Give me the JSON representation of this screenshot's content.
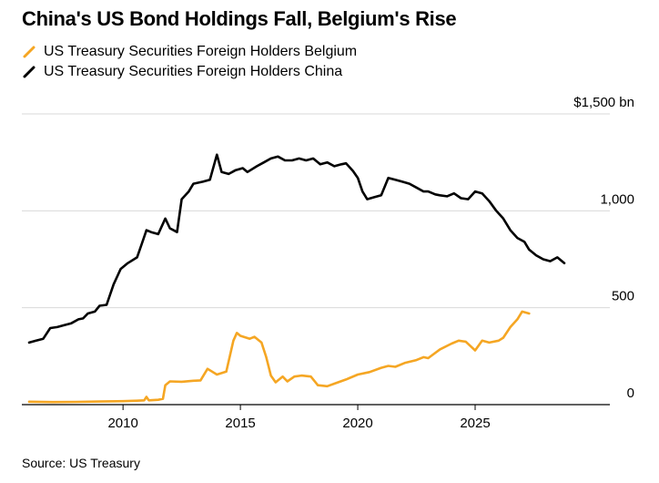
{
  "title": "China's US Bond Holdings Fall, Belgium's Rise",
  "source": "Source: US Treasury",
  "colors": {
    "belgium": "#f5a623",
    "china": "#000000",
    "grid": "#d9d9d9",
    "axis": "#000000"
  },
  "chart_data": {
    "type": "line",
    "title": "China's US Bond Holdings Fall, Belgium's Rise",
    "xlabel": "",
    "ylabel": "",
    "xlim": [
      2006,
      2027
    ],
    "ylim": [
      0,
      1500
    ],
    "y_ticks": [
      {
        "value": 0,
        "label": "0"
      },
      {
        "value": 500,
        "label": "500"
      },
      {
        "value": 1000,
        "label": "1,000"
      },
      {
        "value": 1500,
        "label": "$1,500 bn"
      }
    ],
    "x_ticks": [
      {
        "value": 2010,
        "label": "2010"
      },
      {
        "value": 2015,
        "label": "2015"
      },
      {
        "value": 2020,
        "label": "2020"
      },
      {
        "value": 2025,
        "label": "2025"
      }
    ],
    "grid": true,
    "legend_position": "top-left",
    "series": [
      {
        "name": "US Treasury Securities Foreign Holders Belgium",
        "color": "#f5a623",
        "points": [
          [
            2006.0,
            15
          ],
          [
            2007.0,
            13
          ],
          [
            2008.0,
            14
          ],
          [
            2009.0,
            16
          ],
          [
            2010.0,
            18
          ],
          [
            2010.6,
            20
          ],
          [
            2010.9,
            22
          ],
          [
            2011.0,
            40
          ],
          [
            2011.1,
            22
          ],
          [
            2011.5,
            25
          ],
          [
            2011.7,
            30
          ],
          [
            2011.8,
            100
          ],
          [
            2012.0,
            120
          ],
          [
            2012.5,
            118
          ],
          [
            2013.0,
            123
          ],
          [
            2013.3,
            125
          ],
          [
            2013.6,
            185
          ],
          [
            2014.0,
            155
          ],
          [
            2014.4,
            170
          ],
          [
            2014.7,
            330
          ],
          [
            2014.85,
            370
          ],
          [
            2015.0,
            355
          ],
          [
            2015.4,
            340
          ],
          [
            2015.6,
            350
          ],
          [
            2015.9,
            320
          ],
          [
            2016.1,
            245
          ],
          [
            2016.3,
            150
          ],
          [
            2016.5,
            115
          ],
          [
            2016.8,
            145
          ],
          [
            2017.0,
            120
          ],
          [
            2017.3,
            145
          ],
          [
            2017.6,
            150
          ],
          [
            2018.0,
            145
          ],
          [
            2018.3,
            100
          ],
          [
            2018.7,
            95
          ],
          [
            2019.0,
            108
          ],
          [
            2019.5,
            130
          ],
          [
            2020.0,
            155
          ],
          [
            2020.5,
            168
          ],
          [
            2021.0,
            190
          ],
          [
            2021.3,
            200
          ],
          [
            2021.6,
            195
          ],
          [
            2022.0,
            215
          ],
          [
            2022.5,
            230
          ],
          [
            2022.8,
            245
          ],
          [
            2023.0,
            240
          ],
          [
            2023.5,
            285
          ],
          [
            2024.0,
            315
          ],
          [
            2024.3,
            330
          ],
          [
            2024.6,
            325
          ],
          [
            2025.0,
            280
          ],
          [
            2025.3,
            330
          ],
          [
            2025.6,
            320
          ],
          [
            2026.0,
            330
          ],
          [
            2026.2,
            345
          ],
          [
            2026.5,
            400
          ],
          [
            2026.8,
            440
          ],
          [
            2027.0,
            480
          ],
          [
            2027.3,
            470
          ]
        ]
      },
      {
        "name": "US Treasury Securities Foreign Holders China",
        "color": "#000000",
        "points": [
          [
            2006.0,
            320
          ],
          [
            2006.3,
            330
          ],
          [
            2006.6,
            340
          ],
          [
            2006.9,
            395
          ],
          [
            2007.2,
            400
          ],
          [
            2007.5,
            410
          ],
          [
            2007.8,
            420
          ],
          [
            2008.1,
            440
          ],
          [
            2008.3,
            445
          ],
          [
            2008.5,
            470
          ],
          [
            2008.8,
            480
          ],
          [
            2009.0,
            510
          ],
          [
            2009.3,
            515
          ],
          [
            2009.6,
            620
          ],
          [
            2009.9,
            700
          ],
          [
            2010.2,
            730
          ],
          [
            2010.6,
            760
          ],
          [
            2010.8,
            830
          ],
          [
            2011.0,
            900
          ],
          [
            2011.2,
            890
          ],
          [
            2011.5,
            880
          ],
          [
            2011.8,
            960
          ],
          [
            2012.0,
            910
          ],
          [
            2012.3,
            890
          ],
          [
            2012.5,
            1060
          ],
          [
            2012.8,
            1100
          ],
          [
            2013.0,
            1140
          ],
          [
            2013.4,
            1150
          ],
          [
            2013.7,
            1160
          ],
          [
            2014.0,
            1290
          ],
          [
            2014.2,
            1200
          ],
          [
            2014.5,
            1190
          ],
          [
            2014.8,
            1210
          ],
          [
            2015.1,
            1220
          ],
          [
            2015.3,
            1200
          ],
          [
            2015.7,
            1230
          ],
          [
            2016.0,
            1250
          ],
          [
            2016.3,
            1270
          ],
          [
            2016.6,
            1280
          ],
          [
            2016.9,
            1260
          ],
          [
            2017.2,
            1260
          ],
          [
            2017.5,
            1270
          ],
          [
            2017.8,
            1260
          ],
          [
            2018.1,
            1270
          ],
          [
            2018.4,
            1240
          ],
          [
            2018.7,
            1250
          ],
          [
            2019.0,
            1230
          ],
          [
            2019.3,
            1240
          ],
          [
            2019.5,
            1245
          ],
          [
            2019.8,
            1205
          ],
          [
            2020.0,
            1170
          ],
          [
            2020.2,
            1100
          ],
          [
            2020.4,
            1060
          ],
          [
            2020.7,
            1070
          ],
          [
            2021.0,
            1080
          ],
          [
            2021.3,
            1170
          ],
          [
            2021.6,
            1160
          ],
          [
            2021.9,
            1150
          ],
          [
            2022.2,
            1140
          ],
          [
            2022.5,
            1120
          ],
          [
            2022.8,
            1100
          ],
          [
            2023.0,
            1100
          ],
          [
            2023.3,
            1085
          ],
          [
            2023.5,
            1080
          ],
          [
            2023.8,
            1075
          ],
          [
            2024.1,
            1090
          ],
          [
            2024.4,
            1065
          ],
          [
            2024.7,
            1060
          ],
          [
            2025.0,
            1100
          ],
          [
            2025.3,
            1090
          ],
          [
            2025.6,
            1050
          ],
          [
            2025.9,
            1000
          ],
          [
            2026.2,
            960
          ],
          [
            2026.5,
            900
          ],
          [
            2026.8,
            860
          ],
          [
            2027.1,
            840
          ],
          [
            2027.3,
            800
          ],
          [
            2027.6,
            770
          ],
          [
            2027.9,
            750
          ],
          [
            2028.2,
            740
          ],
          [
            2028.5,
            760
          ],
          [
            2028.8,
            730
          ]
        ]
      }
    ]
  }
}
